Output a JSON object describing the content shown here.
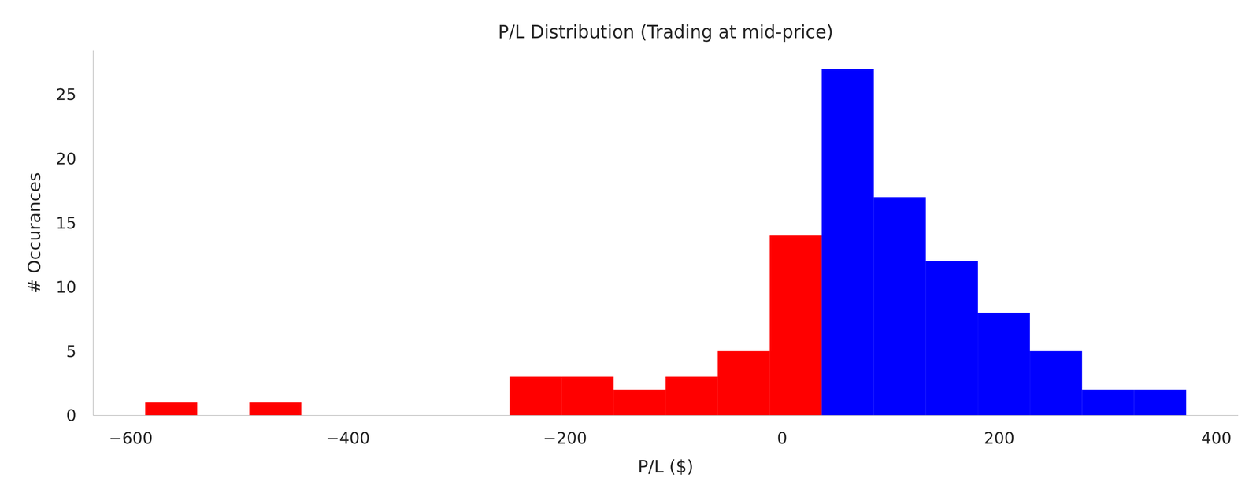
{
  "chart_data": {
    "type": "histogram",
    "title": "P/L Distribution (Trading at mid-price)",
    "x_label": "P/L ($)",
    "y_label": "# Occurances",
    "bins": [
      -586.7,
      -538.8,
      -490.8,
      -442.9,
      -394.9,
      -347.0,
      -299.1,
      -251.1,
      -203.2,
      -155.2,
      -107.3,
      -59.3,
      -11.4,
      36.5,
      84.5,
      132.4,
      180.4,
      228.3,
      276.3,
      324.2,
      372.2
    ],
    "counts": [
      1,
      0,
      1,
      0,
      0,
      0,
      0,
      3,
      3,
      2,
      3,
      5,
      14,
      27,
      17,
      12,
      8,
      5,
      2,
      2
    ],
    "colors": [
      "#ff0000",
      "#ff0000",
      "#ff0000",
      "#ff0000",
      "#ff0000",
      "#ff0000",
      "#ff0000",
      "#ff0000",
      "#ff0000",
      "#ff0000",
      "#ff0000",
      "#ff0000",
      "#ff0000",
      "#0000ff",
      "#0000ff",
      "#0000ff",
      "#0000ff",
      "#0000ff",
      "#0000ff",
      "#0000ff"
    ],
    "xlim": [
      -634.6,
      420.1
    ],
    "ylim": [
      0,
      28.4
    ],
    "xticks": [
      {
        "value": -600,
        "label": "−600"
      },
      {
        "value": -400,
        "label": "−400"
      },
      {
        "value": -200,
        "label": "−200"
      },
      0,
      200,
      400
    ],
    "yticks": [
      0,
      5,
      10,
      15,
      20,
      25
    ],
    "grid": false
  }
}
